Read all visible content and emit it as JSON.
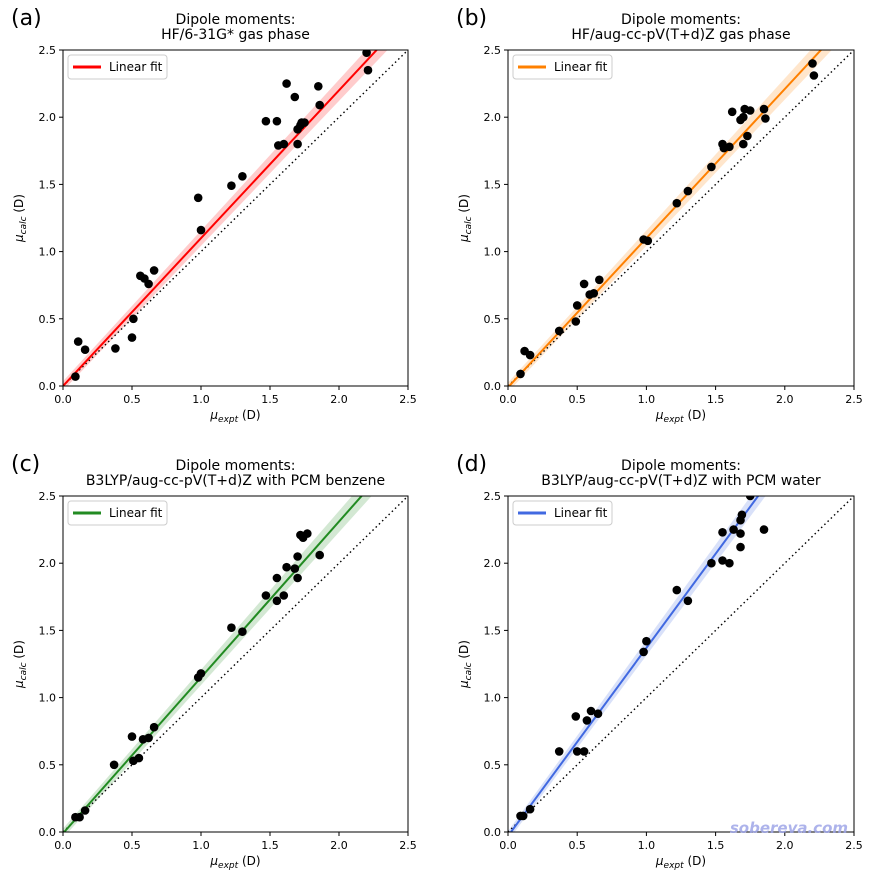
{
  "watermark": "sobereva.com",
  "xlabel": "μexpt (D)",
  "ylabel": "μcalc (D)",
  "chart_data": [
    {
      "type": "scatter",
      "panel": "(a)",
      "title": [
        "Dipole moments:",
        "HF/6-31G* gas phase"
      ],
      "xlabel": "μexpt (D)",
      "ylabel": "μcalc (D)",
      "xlim": [
        0,
        2.5
      ],
      "ylim": [
        0,
        2.5
      ],
      "xticks": [
        "0.0",
        "0.5",
        "1.0",
        "1.5",
        "2.0",
        "2.5"
      ],
      "yticks": [
        "0.0",
        "0.5",
        "1.0",
        "1.5",
        "2.0",
        "2.5"
      ],
      "legend": {
        "label": "Linear fit",
        "placement": "top-left"
      },
      "color": "#ff0000",
      "fit": {
        "slope": 1.1,
        "intercept": 0.0
      },
      "diagonal": "dotted y = x",
      "points": [
        [
          0.09,
          0.07
        ],
        [
          0.11,
          0.33
        ],
        [
          0.16,
          0.27
        ],
        [
          0.38,
          0.28
        ],
        [
          0.5,
          0.36
        ],
        [
          0.51,
          0.5
        ],
        [
          0.56,
          0.82
        ],
        [
          0.59,
          0.8
        ],
        [
          0.62,
          0.76
        ],
        [
          0.66,
          0.86
        ],
        [
          0.98,
          1.4
        ],
        [
          1.0,
          1.16
        ],
        [
          1.22,
          1.49
        ],
        [
          1.3,
          1.56
        ],
        [
          1.47,
          1.97
        ],
        [
          1.55,
          1.97
        ],
        [
          1.56,
          1.79
        ],
        [
          1.6,
          1.8
        ],
        [
          1.62,
          2.25
        ],
        [
          1.68,
          2.15
        ],
        [
          1.7,
          1.91
        ],
        [
          1.7,
          1.8
        ],
        [
          1.72,
          1.94
        ],
        [
          1.73,
          1.96
        ],
        [
          1.75,
          1.96
        ],
        [
          1.85,
          2.23
        ],
        [
          1.86,
          2.09
        ],
        [
          2.2,
          2.48
        ],
        [
          2.21,
          2.35
        ]
      ]
    },
    {
      "type": "scatter",
      "panel": "(b)",
      "title": [
        "Dipole moments:",
        "HF/aug-cc-pV(T+d)Z gas phase"
      ],
      "xlabel": "μexpt (D)",
      "ylabel": "μcalc (D)",
      "xlim": [
        0,
        2.5
      ],
      "ylim": [
        0,
        2.5
      ],
      "xticks": [
        "0.0",
        "0.5",
        "1.0",
        "1.5",
        "2.0",
        "2.5"
      ],
      "yticks": [
        "0.0",
        "0.5",
        "1.0",
        "1.5",
        "2.0",
        "2.5"
      ],
      "legend": {
        "label": "Linear fit",
        "placement": "top-left"
      },
      "color": "#ff8000",
      "fit": {
        "slope": 1.11,
        "intercept": -0.01
      },
      "diagonal": "dotted y = x",
      "points": [
        [
          0.09,
          0.09
        ],
        [
          0.12,
          0.26
        ],
        [
          0.16,
          0.23
        ],
        [
          0.37,
          0.41
        ],
        [
          0.49,
          0.48
        ],
        [
          0.5,
          0.6
        ],
        [
          0.55,
          0.76
        ],
        [
          0.59,
          0.68
        ],
        [
          0.62,
          0.69
        ],
        [
          0.66,
          0.79
        ],
        [
          0.98,
          1.09
        ],
        [
          1.01,
          1.08
        ],
        [
          1.22,
          1.36
        ],
        [
          1.3,
          1.45
        ],
        [
          1.47,
          1.63
        ],
        [
          1.55,
          1.8
        ],
        [
          1.56,
          1.77
        ],
        [
          1.6,
          1.78
        ],
        [
          1.62,
          2.04
        ],
        [
          1.68,
          1.98
        ],
        [
          1.7,
          1.8
        ],
        [
          1.7,
          2.0
        ],
        [
          1.71,
          2.06
        ],
        [
          1.73,
          1.86
        ],
        [
          1.75,
          2.05
        ],
        [
          1.85,
          2.06
        ],
        [
          1.86,
          1.99
        ],
        [
          2.2,
          2.4
        ],
        [
          2.21,
          2.31
        ]
      ]
    },
    {
      "type": "scatter",
      "panel": "(c)",
      "title": [
        "Dipole moments:",
        "B3LYP/aug-cc-pV(T+d)Z with PCM benzene"
      ],
      "xlabel": "μexpt (D)",
      "ylabel": "μcalc (D)",
      "xlim": [
        0,
        2.5
      ],
      "ylim": [
        0,
        2.5
      ],
      "xticks": [
        "0.0",
        "0.5",
        "1.0",
        "1.5",
        "2.0",
        "2.5"
      ],
      "yticks": [
        "0.0",
        "0.5",
        "1.0",
        "1.5",
        "2.0",
        "2.5"
      ],
      "legend": {
        "label": "Linear fit",
        "placement": "top-left"
      },
      "color": "#228b22",
      "fit": {
        "slope": 1.16,
        "intercept": -0.01
      },
      "diagonal": "dotted y = x",
      "points": [
        [
          0.09,
          0.11
        ],
        [
          0.12,
          0.11
        ],
        [
          0.16,
          0.16
        ],
        [
          0.37,
          0.5
        ],
        [
          0.5,
          0.71
        ],
        [
          0.51,
          0.53
        ],
        [
          0.55,
          0.55
        ],
        [
          0.58,
          0.69
        ],
        [
          0.62,
          0.7
        ],
        [
          0.66,
          0.78
        ],
        [
          0.98,
          1.15
        ],
        [
          1.0,
          1.18
        ],
        [
          1.22,
          1.52
        ],
        [
          1.3,
          1.49
        ],
        [
          1.47,
          1.76
        ],
        [
          1.55,
          1.89
        ],
        [
          1.55,
          1.72
        ],
        [
          1.6,
          1.76
        ],
        [
          1.62,
          1.97
        ],
        [
          1.68,
          1.96
        ],
        [
          1.7,
          1.89
        ],
        [
          1.7,
          2.05
        ],
        [
          1.72,
          2.21
        ],
        [
          1.74,
          2.19
        ],
        [
          1.77,
          2.22
        ],
        [
          1.86,
          2.06
        ]
      ]
    },
    {
      "type": "scatter",
      "panel": "(d)",
      "title": [
        "Dipole moments:",
        "B3LYP/aug-cc-pV(T+d)Z with PCM water"
      ],
      "xlabel": "μexpt (D)",
      "ylabel": "μcalc (D)",
      "xlim": [
        0,
        2.5
      ],
      "ylim": [
        0,
        2.5
      ],
      "xticks": [
        "0.0",
        "0.5",
        "1.0",
        "1.5",
        "2.0",
        "2.5"
      ],
      "yticks": [
        "0.0",
        "0.5",
        "1.0",
        "1.5",
        "2.0",
        "2.5"
      ],
      "legend": {
        "label": "Linear fit",
        "placement": "top-left"
      },
      "color": "#4169e1",
      "fit": {
        "slope": 1.4,
        "intercept": -0.03
      },
      "diagonal": "dotted y = x",
      "points": [
        [
          0.09,
          0.12
        ],
        [
          0.11,
          0.12
        ],
        [
          0.16,
          0.17
        ],
        [
          0.37,
          0.6
        ],
        [
          0.49,
          0.86
        ],
        [
          0.5,
          0.6
        ],
        [
          0.55,
          0.6
        ],
        [
          0.57,
          0.83
        ],
        [
          0.6,
          0.9
        ],
        [
          0.65,
          0.88
        ],
        [
          0.98,
          1.34
        ],
        [
          1.0,
          1.42
        ],
        [
          1.22,
          1.8
        ],
        [
          1.3,
          1.72
        ],
        [
          1.47,
          2.0
        ],
        [
          1.55,
          2.23
        ],
        [
          1.55,
          2.02
        ],
        [
          1.6,
          2.0
        ],
        [
          1.63,
          2.25
        ],
        [
          1.68,
          2.12
        ],
        [
          1.68,
          2.22
        ],
        [
          1.68,
          2.32
        ],
        [
          1.69,
          2.36
        ],
        [
          1.75,
          2.5
        ],
        [
          1.85,
          2.25
        ]
      ]
    }
  ]
}
